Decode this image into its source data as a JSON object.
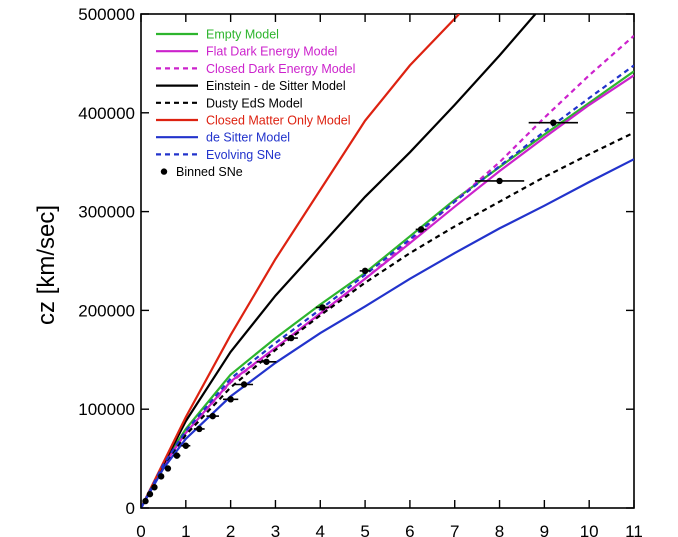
{
  "chart_data": {
    "type": "line",
    "title": "",
    "xlabel": "",
    "ylabel": "cz [km/sec]",
    "xlim": [
      0,
      11
    ],
    "ylim": [
      0,
      500000
    ],
    "xticks": [
      "0",
      "1",
      "2",
      "3",
      "4",
      "5",
      "6",
      "7",
      "8",
      "9",
      "10",
      "11"
    ],
    "yticks": [
      "0",
      "100000",
      "200000",
      "300000",
      "400000",
      "500000"
    ],
    "grid": false,
    "legend_position": "top-left",
    "series": [
      {
        "name": "Empty Model",
        "color": "#2db52d",
        "dash": "solid",
        "x": [
          0,
          0.5,
          1,
          2,
          3,
          4,
          5,
          6,
          7,
          8,
          9,
          10,
          11
        ],
        "y": [
          0,
          45000,
          80000,
          135000,
          172000,
          206000,
          238000,
          275000,
          312000,
          345000,
          378000,
          410000,
          442000
        ]
      },
      {
        "name": "Flat Dark Energy Model",
        "color": "#cc22cc",
        "dash": "solid",
        "x": [
          0,
          0.5,
          1,
          2,
          3,
          4,
          5,
          6,
          7,
          8,
          9,
          10,
          11
        ],
        "y": [
          0,
          43000,
          76000,
          128000,
          162000,
          197000,
          232000,
          268000,
          305000,
          341000,
          375000,
          408000,
          438000
        ]
      },
      {
        "name": "Closed Dark Energy Model",
        "color": "#cc22cc",
        "dash": "dashed",
        "x": [
          0,
          0.5,
          1,
          2,
          3,
          4,
          5,
          6,
          7,
          8,
          9,
          10,
          11
        ],
        "y": [
          0,
          43000,
          76000,
          127000,
          162000,
          196000,
          232000,
          270000,
          310000,
          350000,
          395000,
          438000,
          478000
        ]
      },
      {
        "name": "Einstein - de Sitter Model",
        "color": "#000000",
        "dash": "solid",
        "x": [
          0,
          1,
          2,
          3,
          4,
          5,
          6,
          7,
          8,
          8.8
        ],
        "y": [
          0,
          88000,
          158000,
          215000,
          265000,
          315000,
          360000,
          408000,
          458000,
          500000
        ]
      },
      {
        "name": "Dusty EdS Model",
        "color": "#000000",
        "dash": "dashed",
        "x": [
          0,
          0.5,
          1,
          2,
          3,
          4,
          5,
          6,
          7,
          8,
          9,
          10,
          11
        ],
        "y": [
          0,
          42000,
          74000,
          122000,
          160000,
          195000,
          228000,
          258000,
          285000,
          310000,
          335000,
          358000,
          380000
        ]
      },
      {
        "name": "Closed Matter Only Model",
        "color": "#dd2211",
        "dash": "solid",
        "x": [
          0,
          1,
          2,
          3,
          4,
          5,
          6,
          7.1
        ],
        "y": [
          0,
          92000,
          175000,
          252000,
          322000,
          392000,
          448000,
          500000
        ]
      },
      {
        "name": "de Sitter Model",
        "color": "#2233cc",
        "dash": "solid",
        "x": [
          0,
          0.5,
          1,
          2,
          3,
          4,
          5,
          6,
          7,
          8,
          9,
          10,
          11
        ],
        "y": [
          0,
          40000,
          70000,
          113000,
          147000,
          177000,
          204000,
          232000,
          258000,
          283000,
          306000,
          330000,
          353000
        ]
      },
      {
        "name": "Evolving SNe",
        "color": "#2233cc",
        "dash": "dashed",
        "x": [
          0,
          0.5,
          1,
          2,
          3,
          4,
          5,
          6,
          7,
          8,
          9,
          10,
          11
        ],
        "y": [
          0,
          44000,
          78000,
          131000,
          167000,
          201000,
          236000,
          272000,
          310000,
          346000,
          381000,
          415000,
          448000
        ]
      }
    ],
    "binned_sne": {
      "name": "Binned SNe",
      "color": "#000000",
      "points": [
        {
          "x": 0.1,
          "y": 7000,
          "xerr": 0.05
        },
        {
          "x": 0.2,
          "y": 14000,
          "xerr": 0.05
        },
        {
          "x": 0.3,
          "y": 21000,
          "xerr": 0.05
        },
        {
          "x": 0.45,
          "y": 32000,
          "xerr": 0.06
        },
        {
          "x": 0.6,
          "y": 40000,
          "xerr": 0.07
        },
        {
          "x": 0.8,
          "y": 53000,
          "xerr": 0.08
        },
        {
          "x": 1.0,
          "y": 63000,
          "xerr": 0.1
        },
        {
          "x": 1.3,
          "y": 80000,
          "xerr": 0.12
        },
        {
          "x": 1.6,
          "y": 93000,
          "xerr": 0.14
        },
        {
          "x": 2.0,
          "y": 110000,
          "xerr": 0.17
        },
        {
          "x": 2.3,
          "y": 125000,
          "xerr": 0.2
        },
        {
          "x": 2.8,
          "y": 148000,
          "xerr": 0.22
        },
        {
          "x": 3.35,
          "y": 172000,
          "xerr": 0.15
        },
        {
          "x": 4.05,
          "y": 203000,
          "xerr": 0.15
        },
        {
          "x": 5.0,
          "y": 240000,
          "xerr": 0.12
        },
        {
          "x": 6.25,
          "y": 282000,
          "xerr": 0.12
        },
        {
          "x": 8.0,
          "y": 331000,
          "xerr": 0.55
        },
        {
          "x": 9.2,
          "y": 390000,
          "xerr": 0.55
        }
      ]
    }
  }
}
